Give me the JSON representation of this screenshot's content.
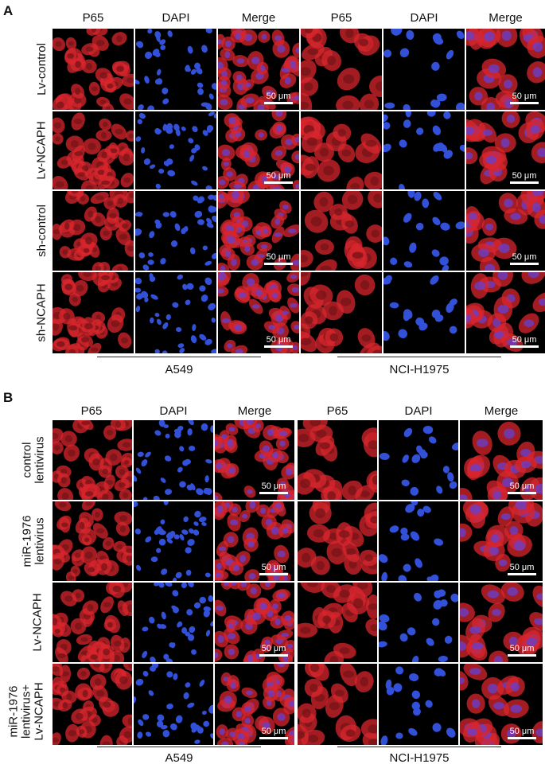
{
  "colors": {
    "p65": "#d8262e",
    "dapi": "#3250d8",
    "background": "#000000",
    "scale_bar": "#ffffff"
  },
  "panel_a": {
    "letter": "A",
    "columns": [
      "P65",
      "DAPI",
      "Merge",
      "P65",
      "DAPI",
      "Merge"
    ],
    "rows": [
      {
        "label": [
          "Lv-control"
        ]
      },
      {
        "label": [
          "Lv-NCAPH"
        ]
      },
      {
        "label": [
          "sh-control"
        ]
      },
      {
        "label": [
          "sh-NCAPH"
        ]
      }
    ],
    "groups": [
      "A549",
      "NCI-H1975"
    ],
    "scale_bar_label": "50 μm"
  },
  "panel_b": {
    "letter": "B",
    "columns": [
      "P65",
      "DAPI",
      "Merge",
      "P65",
      "DAPI",
      "Merge"
    ],
    "rows": [
      {
        "label": [
          "control",
          "lentivirus"
        ]
      },
      {
        "label": [
          "miR-1976",
          "lentivirus"
        ]
      },
      {
        "label": [
          "Lv-NCAPH"
        ]
      },
      {
        "label": [
          "miR-1976",
          "lentivirus+",
          "Lv-NCAPH"
        ]
      }
    ],
    "groups": [
      "A549",
      "NCI-H1975"
    ],
    "scale_bar_label": "50 μm"
  }
}
